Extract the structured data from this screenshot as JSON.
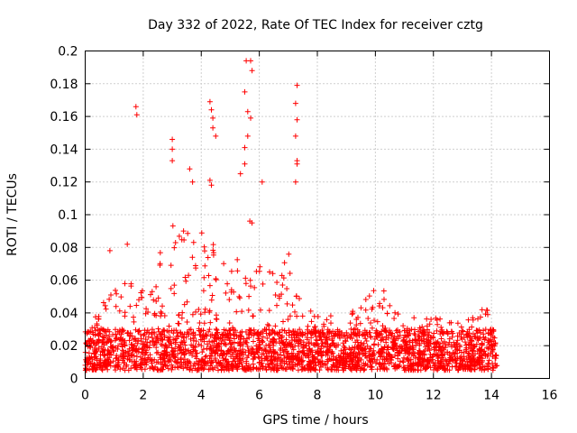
{
  "chart_data": {
    "type": "scatter",
    "title": "Day 332 of 2022, Rate Of TEC Index for receiver cztg",
    "xlabel": "GPS time / hours",
    "ylabel": "ROTI / TECUs",
    "xlim": [
      0,
      16
    ],
    "ylim": [
      0,
      0.2
    ],
    "xticks": [
      "0",
      "2",
      "4",
      "6",
      "8",
      "10",
      "12",
      "14",
      "16"
    ],
    "yticks": [
      "0",
      "0.02",
      "0.04",
      "0.06",
      "0.08",
      "0.1",
      "0.12",
      "0.14",
      "0.16",
      "0.18",
      "0.2"
    ],
    "grid": true,
    "marker": "+",
    "color": "#ff0000",
    "series": [
      {
        "name": "ROTI",
        "notable_points": [
          {
            "x": 1.75,
            "y": 0.166
          },
          {
            "x": 1.78,
            "y": 0.161
          },
          {
            "x": 3.0,
            "y": 0.146
          },
          {
            "x": 3.0,
            "y": 0.14
          },
          {
            "x": 3.0,
            "y": 0.133
          },
          {
            "x": 3.6,
            "y": 0.128
          },
          {
            "x": 3.7,
            "y": 0.12
          },
          {
            "x": 4.3,
            "y": 0.169
          },
          {
            "x": 4.35,
            "y": 0.164
          },
          {
            "x": 4.4,
            "y": 0.159
          },
          {
            "x": 4.4,
            "y": 0.153
          },
          {
            "x": 4.5,
            "y": 0.148
          },
          {
            "x": 4.3,
            "y": 0.121
          },
          {
            "x": 4.35,
            "y": 0.118
          },
          {
            "x": 5.55,
            "y": 0.194
          },
          {
            "x": 5.7,
            "y": 0.194
          },
          {
            "x": 5.75,
            "y": 0.188
          },
          {
            "x": 5.5,
            "y": 0.175
          },
          {
            "x": 5.6,
            "y": 0.163
          },
          {
            "x": 5.7,
            "y": 0.159
          },
          {
            "x": 5.6,
            "y": 0.148
          },
          {
            "x": 5.5,
            "y": 0.141
          },
          {
            "x": 5.5,
            "y": 0.131
          },
          {
            "x": 5.35,
            "y": 0.125
          },
          {
            "x": 6.1,
            "y": 0.12
          },
          {
            "x": 7.3,
            "y": 0.179
          },
          {
            "x": 7.25,
            "y": 0.168
          },
          {
            "x": 7.3,
            "y": 0.158
          },
          {
            "x": 7.25,
            "y": 0.148
          },
          {
            "x": 7.3,
            "y": 0.133
          },
          {
            "x": 7.3,
            "y": 0.131
          },
          {
            "x": 7.25,
            "y": 0.12
          },
          {
            "x": 1.45,
            "y": 0.082
          },
          {
            "x": 0.85,
            "y": 0.078
          }
        ],
        "activity_profile": [
          {
            "x": 0.0,
            "y": 0.03
          },
          {
            "x": 0.5,
            "y": 0.045
          },
          {
            "x": 1.0,
            "y": 0.055
          },
          {
            "x": 1.5,
            "y": 0.06
          },
          {
            "x": 2.0,
            "y": 0.055
          },
          {
            "x": 2.5,
            "y": 0.075
          },
          {
            "x": 3.0,
            "y": 0.1
          },
          {
            "x": 3.5,
            "y": 0.09
          },
          {
            "x": 4.0,
            "y": 0.095
          },
          {
            "x": 4.5,
            "y": 0.08
          },
          {
            "x": 5.0,
            "y": 0.065
          },
          {
            "x": 5.5,
            "y": 0.11
          },
          {
            "x": 6.0,
            "y": 0.08
          },
          {
            "x": 6.5,
            "y": 0.065
          },
          {
            "x": 7.0,
            "y": 0.09
          },
          {
            "x": 7.5,
            "y": 0.045
          },
          {
            "x": 8.0,
            "y": 0.04
          },
          {
            "x": 8.5,
            "y": 0.045
          },
          {
            "x": 9.0,
            "y": 0.04
          },
          {
            "x": 9.5,
            "y": 0.045
          },
          {
            "x": 10.0,
            "y": 0.062
          },
          {
            "x": 10.5,
            "y": 0.05
          },
          {
            "x": 11.0,
            "y": 0.04
          },
          {
            "x": 11.5,
            "y": 0.038
          },
          {
            "x": 12.0,
            "y": 0.038
          },
          {
            "x": 12.5,
            "y": 0.035
          },
          {
            "x": 13.0,
            "y": 0.035
          },
          {
            "x": 13.5,
            "y": 0.04
          },
          {
            "x": 14.0,
            "y": 0.05
          },
          {
            "x": 14.2,
            "y": 0.035
          }
        ],
        "x_range": [
          0,
          14.2
        ],
        "baseline": {
          "min": 0.005,
          "max": 0.03
        }
      }
    ]
  }
}
